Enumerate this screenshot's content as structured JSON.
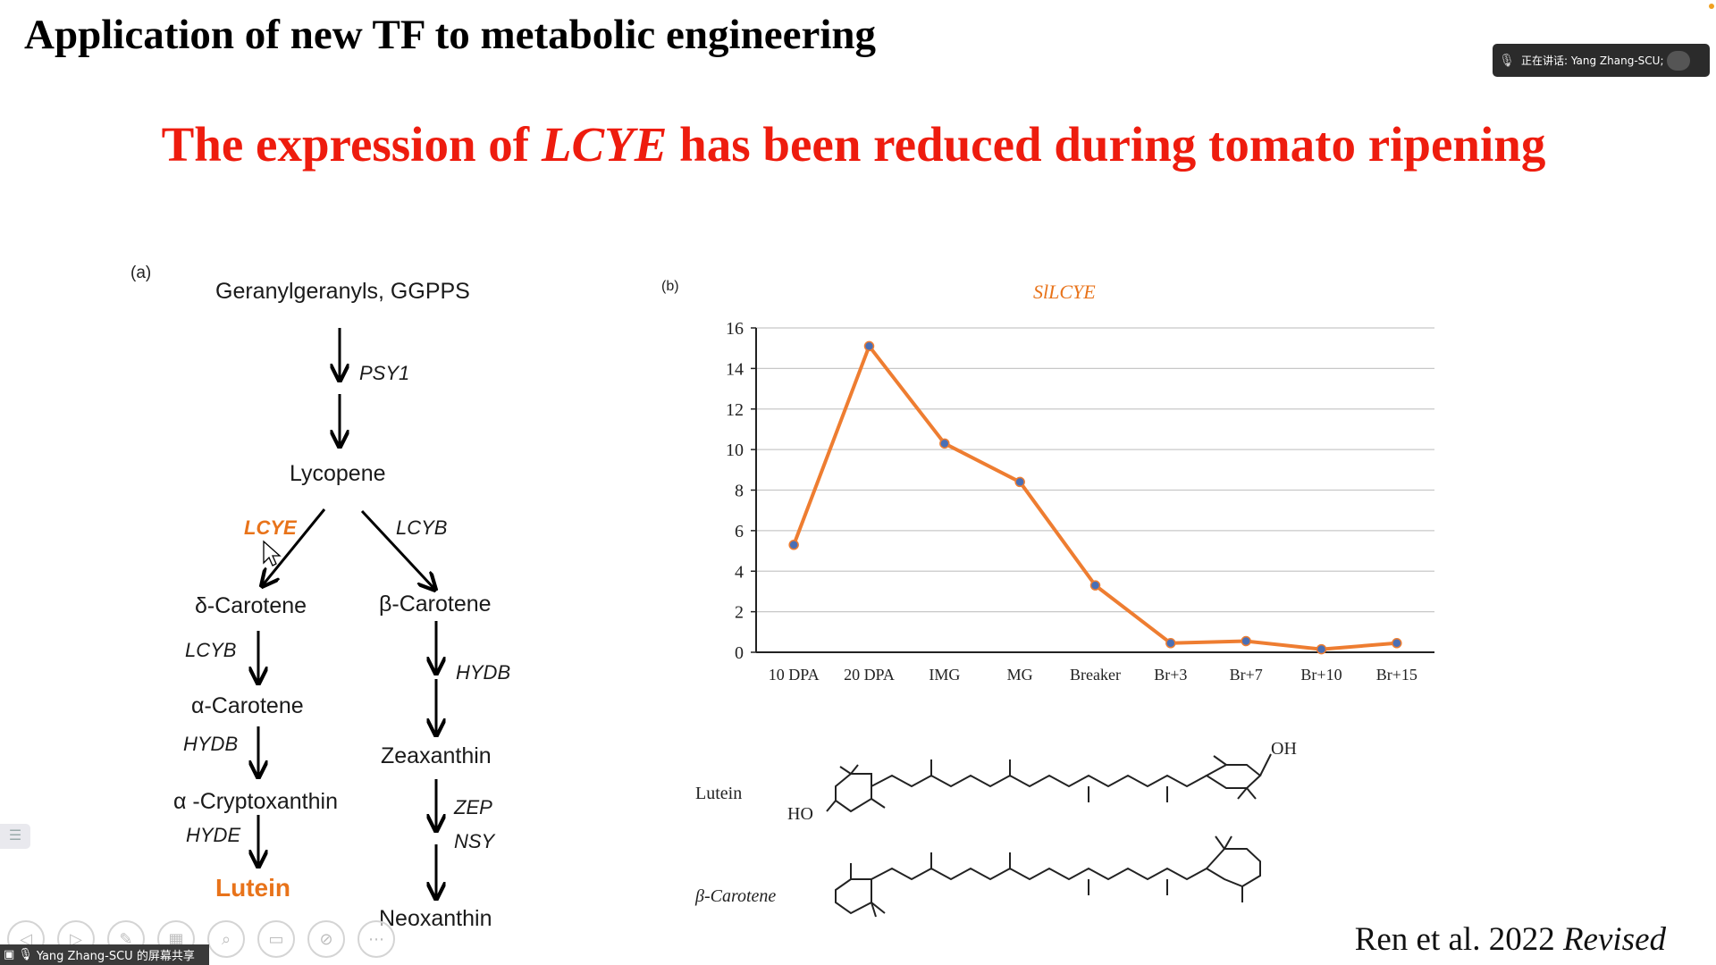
{
  "slide": {
    "title": "Application of new TF to metabolic engineering",
    "headline_pre": "The expression of ",
    "headline_gene": "LCYE",
    "headline_post": " has been reduced during tomato ripening",
    "citation_main": "Ren et al. 2022 ",
    "citation_italic": "Revised"
  },
  "meeting": {
    "speaker_label": "正在讲话: Yang Zhang-SCU;",
    "share_label": "Yang Zhang-SCU 的屏幕共享"
  },
  "pathway": {
    "panel_tag": "(a)",
    "ggpps": "Geranylgeranyls, GGPPS",
    "psy1": "PSY1",
    "lycopene": "Lycopene",
    "lcye": "LCYE",
    "lcyb_right": "LCYB",
    "delta_carotene": "δ-Carotene",
    "beta_carotene": "β-Carotene",
    "lcyb_left": "LCYB",
    "hydb_right": "HYDB",
    "alpha_carotene": "α-Carotene",
    "hydb_left": "HYDB",
    "zeaxanthin": "Zeaxanthin",
    "alpha_cryptoxanthin": "α -Cryptoxanthin",
    "zep": "ZEP",
    "hyde": "HYDE",
    "nsy": "NSY",
    "lutein": "Lutein",
    "neoxanthin": "Neoxanthin"
  },
  "chart_data": {
    "type": "line",
    "panel_tag": "(b)",
    "title": "SlLCYE",
    "categories": [
      "10 DPA",
      "20 DPA",
      "IMG",
      "MG",
      "Breaker",
      "Br+3",
      "Br+7",
      "Br+10",
      "Br+15"
    ],
    "values": [
      5.3,
      15.1,
      10.3,
      8.4,
      3.3,
      0.45,
      0.55,
      0.15,
      0.45
    ],
    "ylim": [
      0,
      16
    ],
    "yticks": [
      "0",
      "2",
      "4",
      "6",
      "8",
      "10",
      "12",
      "14",
      "16"
    ],
    "xlabel": "",
    "ylabel": "",
    "grid": true,
    "line_color": "#ee7d31",
    "marker_color": "#4a6fb5"
  },
  "structures": {
    "lutein_label": "Lutein",
    "oh_label": "OH",
    "ho_label": "HO",
    "beta_carotene_label": "β-Carotene"
  },
  "toolbar": {
    "icons": [
      "back-icon",
      "forward-icon",
      "pen-icon",
      "thumbnails-icon",
      "magnifier-icon",
      "subtitle-icon",
      "camera-off-icon",
      "more-icon"
    ]
  }
}
